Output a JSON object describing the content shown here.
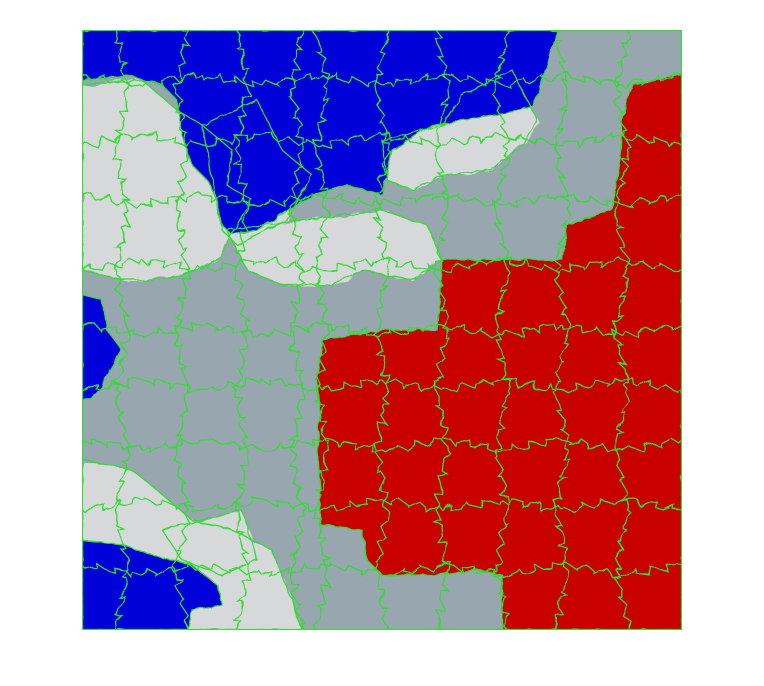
{
  "figure": {
    "kind": "superpixel-segmentation-overlay",
    "colors": {
      "background": "#ffffff",
      "boundary": "#33dd33",
      "sky_gray": "#98a6b0",
      "cloud_light": "#d6d8d9",
      "region_blue": "#0000d8",
      "region_red": "#c80000"
    },
    "regions": {
      "blue": [
        "top-left",
        "left-edge",
        "bottom-left"
      ],
      "red": [
        "right",
        "center-right",
        "bottom-right"
      ]
    }
  }
}
